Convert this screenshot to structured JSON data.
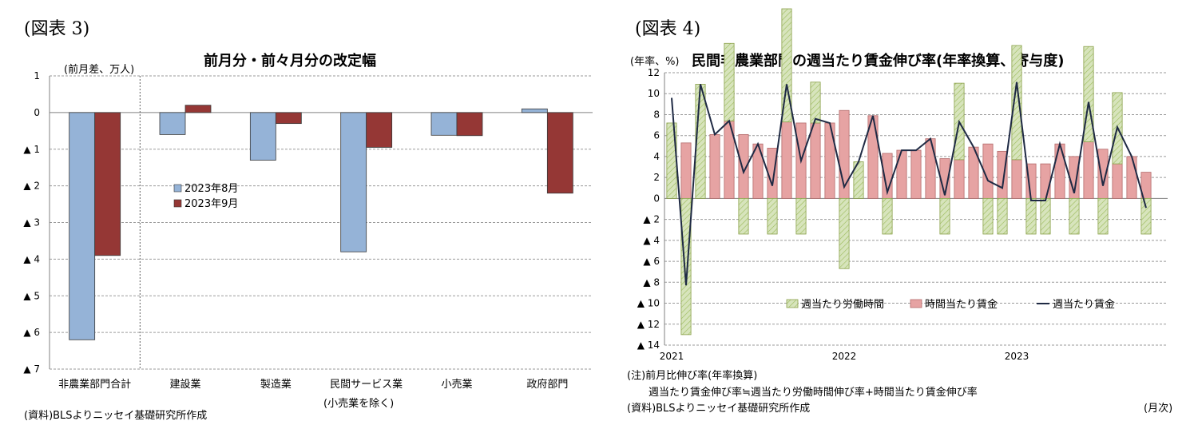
{
  "left": {
    "figure_label": "(図表 3)",
    "unit_label": "(前月差、万人)",
    "source": "(資料)BLSよりニッセイ基礎研究所作成",
    "x_sublabel": "(小売業を除く)"
  },
  "right": {
    "figure_label": "(図表 4)",
    "unit_label": "(年率、%)",
    "note_1": "(注)前月比伸び率(年率換算)",
    "note_2": "週当たり賃金伸び率≒週当たり労働時間伸び率+時間当たり賃金伸び率",
    "source": "(資料)BLSよりニッセイ基礎研究所作成",
    "x_unit": "(月次)"
  },
  "chart_data": [
    {
      "type": "bar",
      "title": "前月分・前々月分の改定幅",
      "ylabel": "(前月差、万人)",
      "categories": [
        "非農業部門合計",
        "建設業",
        "製造業",
        "民間サービス業",
        "小売業",
        "政府部門"
      ],
      "series": [
        {
          "name": "2023年8月",
          "color": "#95b3d7",
          "values": [
            -6.2,
            -0.6,
            -1.3,
            -3.8,
            -0.62,
            0.1
          ]
        },
        {
          "name": "2023年9月",
          "color": "#953735",
          "values": [
            -3.9,
            0.2,
            -0.3,
            -0.95,
            -0.63,
            -2.2
          ]
        }
      ],
      "ylim": [
        -7,
        1
      ],
      "yticks": [
        {
          "value": 1,
          "label": "1"
        },
        {
          "value": 0,
          "label": "0"
        },
        {
          "value": -1,
          "label": "▲ 1"
        },
        {
          "value": -2,
          "label": "▲ 2"
        },
        {
          "value": -3,
          "label": "▲ 3"
        },
        {
          "value": -4,
          "label": "▲ 4"
        },
        {
          "value": -5,
          "label": "▲ 5"
        },
        {
          "value": -6,
          "label": "▲ 6"
        },
        {
          "value": -7,
          "label": "▲ 7"
        }
      ],
      "legend_position": "center-left",
      "grid": true
    },
    {
      "type": "bar",
      "title": "民間非農業部門の週当たり賃金伸び率(年率換算、寄与度)",
      "ylabel": "(年率、%)",
      "xlabel": "(月次)",
      "x": [
        "2021-01",
        "2021-02",
        "2021-03",
        "2021-04",
        "2021-05",
        "2021-06",
        "2021-07",
        "2021-08",
        "2021-09",
        "2021-10",
        "2021-11",
        "2021-12",
        "2022-01",
        "2022-02",
        "2022-03",
        "2022-04",
        "2022-05",
        "2022-06",
        "2022-07",
        "2022-08",
        "2022-09",
        "2022-10",
        "2022-11",
        "2022-12",
        "2023-01",
        "2023-02",
        "2023-03",
        "2023-04",
        "2023-05",
        "2023-06",
        "2023-07",
        "2023-08",
        "2023-09",
        "2023-10",
        "2023-11"
      ],
      "x_tick_labels": [
        "2021",
        "2022",
        "2023"
      ],
      "series": [
        {
          "name": "週当たり労働時間",
          "kind": "bar",
          "color": "#d7e4bc",
          "values": [
            7.2,
            -13.0,
            10.9,
            0,
            7.4,
            -3.4,
            0,
            -3.4,
            10.8,
            -3.4,
            3.9,
            0,
            -6.7,
            3.5,
            0,
            -3.4,
            0,
            0,
            0,
            -3.4,
            7.3,
            0,
            -3.4,
            -3.4,
            10.9,
            -3.4,
            -3.4,
            0,
            -3.4,
            9.1,
            -3.4,
            6.8,
            0,
            -3.4,
            0
          ]
        },
        {
          "name": "時間当たり賃金",
          "kind": "bar",
          "color": "#e6a3a3",
          "values": [
            0,
            5.3,
            0,
            6.1,
            7.4,
            6.1,
            5.2,
            4.8,
            7.3,
            7.2,
            7.2,
            7.2,
            8.4,
            0,
            7.9,
            4.3,
            4.6,
            4.6,
            5.7,
            3.8,
            3.7,
            4.9,
            5.2,
            4.5,
            3.7,
            3.3,
            3.3,
            5.2,
            4.0,
            5.4,
            4.7,
            3.3,
            4.0,
            2.5,
            0
          ]
        },
        {
          "name": "週当たり賃金",
          "kind": "line",
          "color": "#1f2a44",
          "values": [
            9.6,
            -8.3,
            10.9,
            6.1,
            7.4,
            2.5,
            5.2,
            1.2,
            10.9,
            3.6,
            7.6,
            7.2,
            1.1,
            3.5,
            7.9,
            0.6,
            4.6,
            4.6,
            5.7,
            0.3,
            7.3,
            4.9,
            1.7,
            1.0,
            11.1,
            -0.2,
            -0.2,
            5.2,
            0.5,
            9.2,
            1.2,
            6.8,
            4.0,
            -0.9,
            0
          ]
        }
      ],
      "ylim": [
        -14,
        12
      ],
      "yticks": [
        {
          "value": 12,
          "label": "12"
        },
        {
          "value": 10,
          "label": "10"
        },
        {
          "value": 8,
          "label": "8"
        },
        {
          "value": 6,
          "label": "6"
        },
        {
          "value": 4,
          "label": "4"
        },
        {
          "value": 2,
          "label": "2"
        },
        {
          "value": 0,
          "label": "0"
        },
        {
          "value": -2,
          "label": "▲ 2"
        },
        {
          "value": -4,
          "label": "▲ 4"
        },
        {
          "value": -6,
          "label": "▲ 6"
        },
        {
          "value": -8,
          "label": "▲ 8"
        },
        {
          "value": -10,
          "label": "▲ 10"
        },
        {
          "value": -12,
          "label": "▲ 12"
        },
        {
          "value": -14,
          "label": "▲ 14"
        }
      ],
      "legend_position": "bottom",
      "grid": true
    }
  ]
}
